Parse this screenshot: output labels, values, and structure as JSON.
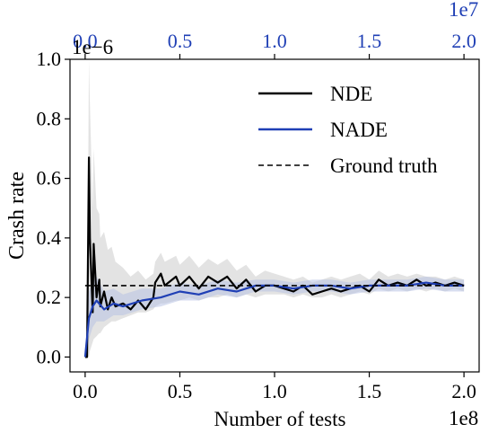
{
  "chart_data": {
    "type": "line",
    "title": "",
    "xlabel": "Number of tests",
    "ylabel": "Crash rate",
    "x_bottom": {
      "lim": [
        -0.08,
        2.08
      ],
      "ticks": [
        0.0,
        0.5,
        1.0,
        1.5,
        2.0
      ],
      "tick_labels": [
        "0.0",
        "0.5",
        "1.0",
        "1.5",
        "2.0"
      ],
      "offset_label": "1e8"
    },
    "x_top": {
      "lim": [
        -0.008,
        0.208
      ],
      "ticks": [
        0.0,
        0.5,
        1.0,
        1.5,
        2.0
      ],
      "tick_labels": [
        "0.0",
        "0.5",
        "1.0",
        "1.5",
        "2.0"
      ],
      "offset_label": "1e7",
      "color": "#1f3fb5"
    },
    "y_axis": {
      "lim": [
        -0.05,
        1.0
      ],
      "ticks": [
        0.0,
        0.2,
        0.4,
        0.6,
        0.8,
        1.0
      ],
      "tick_labels": [
        "0.0",
        "0.2",
        "0.4",
        "0.6",
        "0.8",
        "1.0"
      ],
      "offset_label": "1e−6"
    },
    "legend": {
      "placement": "top-right",
      "entries": [
        {
          "label": "NDE",
          "color": "#000000",
          "style": "solid"
        },
        {
          "label": "NADE",
          "color": "#1f3fb5",
          "style": "solid"
        },
        {
          "label": "Ground truth",
          "color": "#000000",
          "style": "dashed"
        }
      ]
    },
    "series": [
      {
        "name": "NDE",
        "axis": "bottom",
        "color": "#000000",
        "style": "solid",
        "x": [
          0.0,
          0.01,
          0.02,
          0.025,
          0.04,
          0.045,
          0.06,
          0.075,
          0.08,
          0.1,
          0.12,
          0.14,
          0.16,
          0.2,
          0.24,
          0.28,
          0.32,
          0.36,
          0.37,
          0.4,
          0.42,
          0.48,
          0.5,
          0.55,
          0.6,
          0.65,
          0.7,
          0.75,
          0.8,
          0.85,
          0.9,
          0.95,
          1.0,
          1.05,
          1.1,
          1.15,
          1.2,
          1.25,
          1.3,
          1.35,
          1.4,
          1.45,
          1.5,
          1.55,
          1.6,
          1.65,
          1.7,
          1.75,
          1.8,
          1.85,
          1.9,
          1.95,
          2.0
        ],
        "y": [
          0.0,
          0.0,
          0.67,
          0.4,
          0.15,
          0.38,
          0.2,
          0.26,
          0.17,
          0.22,
          0.16,
          0.2,
          0.17,
          0.18,
          0.16,
          0.19,
          0.16,
          0.2,
          0.25,
          0.28,
          0.24,
          0.27,
          0.24,
          0.27,
          0.23,
          0.27,
          0.25,
          0.27,
          0.23,
          0.26,
          0.22,
          0.24,
          0.24,
          0.23,
          0.22,
          0.24,
          0.21,
          0.22,
          0.23,
          0.22,
          0.23,
          0.24,
          0.22,
          0.26,
          0.24,
          0.25,
          0.24,
          0.26,
          0.24,
          0.25,
          0.24,
          0.25,
          0.24
        ],
        "band_lower": [
          0.0,
          0.0,
          0.0,
          0.02,
          0.05,
          0.06,
          0.07,
          0.08,
          0.08,
          0.1,
          0.11,
          0.12,
          0.12,
          0.13,
          0.14,
          0.15,
          0.15,
          0.16,
          0.17,
          0.18,
          0.18,
          0.19,
          0.19,
          0.2,
          0.19,
          0.2,
          0.2,
          0.21,
          0.2,
          0.21,
          0.2,
          0.21,
          0.21,
          0.21,
          0.2,
          0.21,
          0.2,
          0.2,
          0.21,
          0.2,
          0.21,
          0.22,
          0.21,
          0.23,
          0.22,
          0.23,
          0.22,
          0.23,
          0.22,
          0.23,
          0.22,
          0.23,
          0.22
        ],
        "band_upper": [
          0.0,
          0.0,
          1.0,
          0.85,
          0.5,
          0.7,
          0.5,
          0.48,
          0.4,
          0.42,
          0.36,
          0.37,
          0.32,
          0.3,
          0.27,
          0.29,
          0.26,
          0.28,
          0.32,
          0.35,
          0.32,
          0.34,
          0.31,
          0.34,
          0.3,
          0.33,
          0.31,
          0.33,
          0.29,
          0.31,
          0.27,
          0.29,
          0.28,
          0.27,
          0.26,
          0.27,
          0.25,
          0.26,
          0.27,
          0.26,
          0.27,
          0.28,
          0.26,
          0.29,
          0.27,
          0.28,
          0.27,
          0.28,
          0.27,
          0.27,
          0.26,
          0.27,
          0.26
        ]
      },
      {
        "name": "NADE",
        "axis": "top",
        "color": "#1f3fb5",
        "style": "solid",
        "x": [
          0.0,
          0.002,
          0.004,
          0.006,
          0.01,
          0.015,
          0.02,
          0.03,
          0.04,
          0.05,
          0.06,
          0.07,
          0.08,
          0.09,
          0.1,
          0.11,
          0.12,
          0.13,
          0.14,
          0.15,
          0.16,
          0.17,
          0.18,
          0.19,
          0.2
        ],
        "y": [
          0.0,
          0.13,
          0.17,
          0.19,
          0.16,
          0.18,
          0.17,
          0.19,
          0.2,
          0.22,
          0.21,
          0.23,
          0.22,
          0.24,
          0.24,
          0.23,
          0.24,
          0.24,
          0.23,
          0.24,
          0.24,
          0.24,
          0.25,
          0.24,
          0.24
        ],
        "band_lower": [
          0.0,
          0.06,
          0.1,
          0.12,
          0.12,
          0.14,
          0.14,
          0.16,
          0.17,
          0.19,
          0.19,
          0.21,
          0.2,
          0.22,
          0.22,
          0.21,
          0.22,
          0.22,
          0.21,
          0.22,
          0.22,
          0.22,
          0.23,
          0.22,
          0.22
        ],
        "band_upper": [
          0.0,
          0.22,
          0.25,
          0.27,
          0.22,
          0.23,
          0.21,
          0.23,
          0.23,
          0.25,
          0.24,
          0.26,
          0.25,
          0.26,
          0.26,
          0.25,
          0.26,
          0.26,
          0.25,
          0.26,
          0.26,
          0.26,
          0.27,
          0.26,
          0.26
        ]
      },
      {
        "name": "Ground truth",
        "axis": "bottom",
        "color": "#000000",
        "style": "dashed",
        "x": [
          0.0,
          2.0
        ],
        "y": [
          0.24,
          0.24
        ]
      }
    ],
    "band_color": "#d9d9d9",
    "nade_band_color": "#b8c3e3",
    "grid": false
  }
}
